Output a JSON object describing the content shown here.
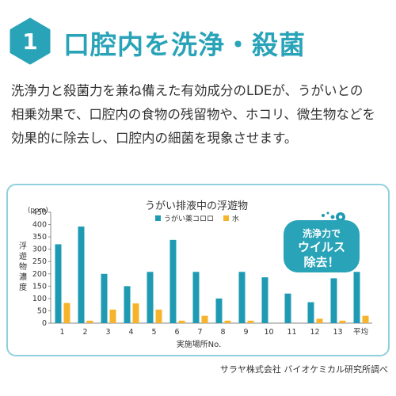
{
  "header": {
    "number": "1",
    "title": "口腔内を洗浄・殺菌"
  },
  "description": [
    "洗浄力と殺菌力を兼ね備えた有効成分のLDEが、うがいとの",
    "相乗効果で、口腔内の食物の残留物や、ホコリ、微生物などを",
    "効果的に除去し、口腔内の細菌を現象させます。"
  ],
  "badge": {
    "line1": "洗浄力で",
    "line2": "ウイルス",
    "line3": "除去！"
  },
  "source": "サラヤ株式会社 バイオケミカル研究所調べ",
  "colors": {
    "accent": "#29a3b8",
    "series1": "#1e9bb2",
    "series2": "#f6b42c",
    "border": "#8fd0dc"
  },
  "chart_data": {
    "type": "bar",
    "title": "うがい排液中の浮遊物",
    "unit_label": "(ppm)",
    "ylabel": "浮遊物濃度",
    "xlabel": "実施場所No.",
    "ylim": [
      0,
      450
    ],
    "yticks": [
      0,
      50,
      100,
      150,
      200,
      250,
      300,
      350,
      400,
      450
    ],
    "categories": [
      "1",
      "2",
      "3",
      "4",
      "5",
      "6",
      "7",
      "8",
      "9",
      "10",
      "11",
      "12",
      "13",
      "平均"
    ],
    "series": [
      {
        "name": "うがい薬コロロ",
        "color": "#1e9bb2",
        "values": [
          320,
          392,
          200,
          150,
          208,
          338,
          208,
          100,
          208,
          186,
          120,
          85,
          182,
          208
        ]
      },
      {
        "name": "水",
        "color": "#f6b42c",
        "values": [
          82,
          10,
          55,
          80,
          55,
          10,
          30,
          10,
          10,
          0,
          0,
          18,
          10,
          30
        ]
      }
    ],
    "legend_position": "top-center",
    "grid": false
  }
}
